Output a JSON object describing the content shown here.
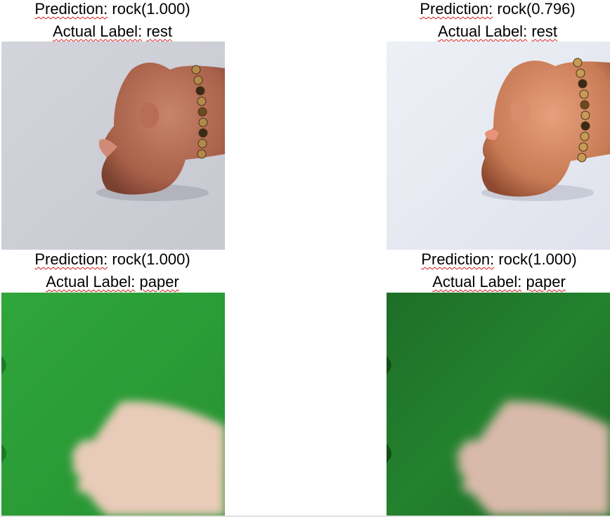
{
  "panels": [
    {
      "prediction_label": "Prediction:",
      "prediction_value": "rock(1.000)",
      "actual_label": "Actual Label:",
      "actual_value": "rest",
      "image_subject": "fist-with-beaded-bracelet-on-gray"
    },
    {
      "prediction_label": "Prediction:",
      "prediction_value": "rock(0.796)",
      "actual_label": "Actual Label:",
      "actual_value": "rest",
      "image_subject": "fist-with-beaded-bracelet-on-white-bright"
    },
    {
      "prediction_label": "Prediction:",
      "prediction_value": "rock(1.000)",
      "actual_label": "Actual Label:",
      "actual_value": "paper",
      "image_subject": "blurred-open-hand-on-green"
    },
    {
      "prediction_label": "Prediction:",
      "prediction_value": "rock(1.000)",
      "actual_label": "Actual Label:",
      "actual_value": "paper",
      "image_subject": "blurred-open-hand-on-dark-green"
    }
  ],
  "colors": {
    "spellcheck_underline": "#d01818",
    "green_light": "#2ea33a",
    "green_dark": "#1f7a2b",
    "gray_background": "#d6d8de",
    "white_background": "#eef0f6"
  }
}
